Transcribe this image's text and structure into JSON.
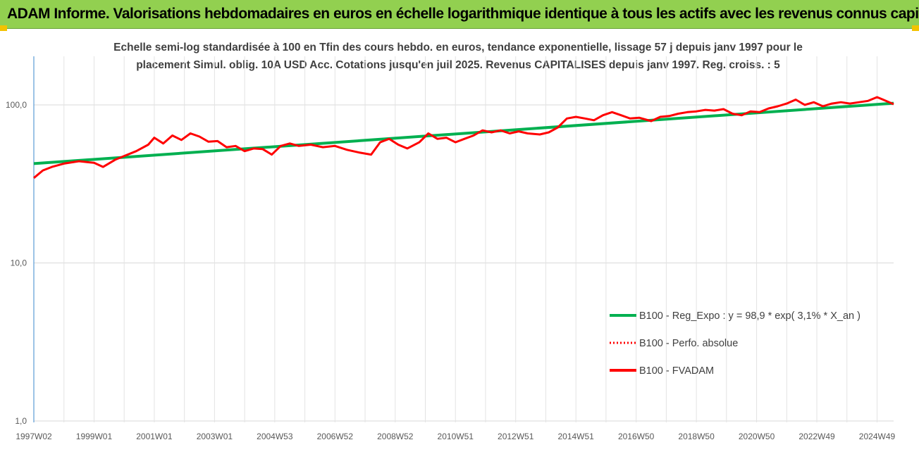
{
  "header": {
    "title": "ADAM Informe. Valorisations hebdomadaires en euros en échelle logarithmique identique à tous les actifs avec les revenus connus capitalisés"
  },
  "chart_data": {
    "type": "line",
    "title": "Echelle semi-log standardisée à 100 en Tfin des cours hebdo. en euros, tendance exponentielle, lissage 57 j depuis janv 1997 pour le placement Simul. oblig. 10A USD Acc. Cotations jusqu'en juil 2025. Revenus CAPITALISES depuis janv 1997. Reg. croiss. : 5",
    "title_lines": [
      "Echelle semi-log standardisée à 100 en Tfin des cours hebdo. en euros, tendance exponentielle, lissage 57 j depuis janv 1997 pour le",
      "placement Simul. oblig. 10A USD Acc. Cotations jusqu'en juil 2025. Revenus CAPITALISES depuis janv 1997. Reg. croiss. : 5"
    ],
    "y_scale": "log",
    "ylim": [
      1,
      200
    ],
    "y_ticks": [
      {
        "value": 1,
        "label": "1,0"
      },
      {
        "value": 10,
        "label": "10,0"
      },
      {
        "value": 100,
        "label": "100,0"
      }
    ],
    "x_range": [
      1997.0,
      2025.55
    ],
    "x_ticks": [
      {
        "year": 1997.0,
        "label": "1997W02"
      },
      {
        "year": 1999.0,
        "label": "1999W01"
      },
      {
        "year": 2001.0,
        "label": "2001W01"
      },
      {
        "year": 2003.0,
        "label": "2003W01"
      },
      {
        "year": 2005.0,
        "label": "2004W53"
      },
      {
        "year": 2007.0,
        "label": "2006W52"
      },
      {
        "year": 2009.0,
        "label": "2008W52"
      },
      {
        "year": 2011.0,
        "label": "2010W51"
      },
      {
        "year": 2013.0,
        "label": "2012W51"
      },
      {
        "year": 2015.0,
        "label": "2014W51"
      },
      {
        "year": 2017.0,
        "label": "2016W50"
      },
      {
        "year": 2019.0,
        "label": "2018W50"
      },
      {
        "year": 2021.0,
        "label": "2020W50"
      },
      {
        "year": 2023.0,
        "label": "2022W49"
      },
      {
        "year": 2025.0,
        "label": "2024W49"
      }
    ],
    "grid": "vertical",
    "legend_position": "bottom-right",
    "series": [
      {
        "name": "B100 - Reg_Expo : y = 98,9 * exp( 3,1% *  X_an )",
        "color": "#00b050",
        "style": "solid",
        "x": [
          1997.0,
          2025.55
        ],
        "y": [
          42.5,
          102.5
        ]
      },
      {
        "name": "B100 - Perfo. absolue",
        "color": "#ff0000",
        "style": "dotted",
        "x": [],
        "y": []
      },
      {
        "name": "B100 - FVADAM",
        "color": "#ff0000",
        "style": "solid",
        "x": [
          1997.0,
          1997.3,
          1997.6,
          1998.0,
          1998.5,
          1999.0,
          1999.3,
          1999.7,
          2000.0,
          2000.4,
          2000.8,
          2001.0,
          2001.3,
          2001.6,
          2001.9,
          2002.2,
          2002.5,
          2002.8,
          2003.1,
          2003.4,
          2003.7,
          2004.0,
          2004.3,
          2004.6,
          2004.9,
          2005.2,
          2005.5,
          2005.8,
          2006.2,
          2006.6,
          2007.0,
          2007.4,
          2007.8,
          2008.2,
          2008.5,
          2008.8,
          2009.1,
          2009.4,
          2009.8,
          2010.1,
          2010.4,
          2010.7,
          2011.0,
          2011.3,
          2011.6,
          2011.9,
          2012.2,
          2012.5,
          2012.8,
          2013.1,
          2013.4,
          2013.8,
          2014.1,
          2014.4,
          2014.7,
          2015.0,
          2015.3,
          2015.6,
          2015.9,
          2016.2,
          2016.5,
          2016.8,
          2017.1,
          2017.5,
          2017.8,
          2018.1,
          2018.4,
          2018.7,
          2019.0,
          2019.3,
          2019.6,
          2019.9,
          2020.2,
          2020.5,
          2020.8,
          2021.1,
          2021.4,
          2021.7,
          2022.0,
          2022.3,
          2022.6,
          2022.9,
          2023.2,
          2023.5,
          2023.8,
          2024.1,
          2024.4,
          2024.7,
          2025.0,
          2025.2,
          2025.4,
          2025.55
        ],
        "y": [
          34.5,
          38.5,
          40.5,
          42.5,
          44.0,
          43.0,
          40.5,
          45.0,
          47.5,
          51.0,
          56.0,
          62.0,
          57.0,
          64.0,
          60.0,
          66.0,
          63.0,
          58.5,
          59.0,
          54.0,
          55.0,
          51.0,
          53.0,
          52.5,
          48.5,
          55.0,
          57.0,
          55.0,
          56.0,
          54.0,
          55.0,
          52.0,
          50.0,
          48.5,
          58.0,
          61.0,
          56.0,
          53.0,
          58.0,
          66.0,
          61.0,
          62.0,
          58.0,
          61.0,
          64.0,
          69.0,
          67.0,
          69.0,
          66.0,
          68.0,
          66.0,
          65.0,
          67.0,
          72.0,
          82.0,
          84.0,
          82.0,
          80.0,
          86.0,
          90.0,
          86.0,
          82.0,
          83.0,
          79.0,
          84.0,
          85.0,
          88.0,
          90.0,
          91.0,
          93.0,
          92.0,
          94.0,
          88.0,
          86.0,
          91.0,
          90.0,
          95.0,
          98.0,
          102.0,
          108.0,
          100.0,
          104.0,
          98.0,
          102.0,
          104.0,
          102.0,
          104.0,
          106.0,
          112.0,
          108.0,
          104.0,
          101.0
        ]
      }
    ]
  }
}
